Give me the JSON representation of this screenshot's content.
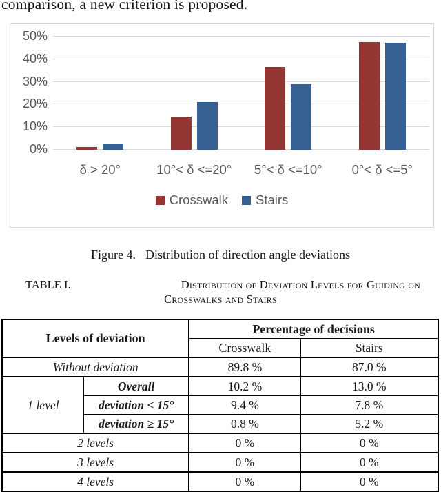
{
  "page": {
    "top_text": "comparison, a new criterion is proposed."
  },
  "figure": {
    "caption_label": "Figure 4.",
    "caption_text": "Distribution of direction angle deviations"
  },
  "chart_data": {
    "type": "bar",
    "title": "",
    "categories": [
      "δ > 20°",
      "10°< δ <=20°",
      "5°< δ <=10°",
      "0°< δ <=5°"
    ],
    "series": [
      {
        "name": "Crosswalk",
        "color": "#943634",
        "values": [
          1.2,
          14.6,
          36.5,
          47.6
        ]
      },
      {
        "name": "Stairs",
        "color": "#376092",
        "values": [
          2.8,
          21.0,
          28.9,
          47.4
        ]
      }
    ],
    "ylim": [
      0,
      50
    ],
    "yticks": [
      "0%",
      "10%",
      "20%",
      "30%",
      "40%",
      "50%"
    ],
    "grid": true,
    "legend_position": "bottom",
    "axis_text_color": "#595959",
    "gridline_color": "#d9d9d9"
  },
  "table_caption": {
    "label": "TABLE I.",
    "line1": "Distribution of Deviation Levels for Guiding on",
    "line2": "Crosswalks and Stairs"
  },
  "table": {
    "levels_header": "Levels of deviation",
    "group_header": "Percentage of decisions",
    "col_crosswalk": "Crosswalk",
    "col_stairs": "Stairs",
    "rows": {
      "without": {
        "label": "Without deviation",
        "crosswalk": "89.8 %",
        "stairs": "87.0 %"
      },
      "one_level_label": "1 level",
      "overall": {
        "label": "Overall",
        "crosswalk": "10.2 %",
        "stairs": "13.0 %"
      },
      "lt15": {
        "label": "deviation < 15°",
        "crosswalk": "9.4 %",
        "stairs": "7.8 %"
      },
      "ge15": {
        "label": "deviation ≥ 15°",
        "crosswalk": "0.8 %",
        "stairs": "5.2 %"
      },
      "two": {
        "label": "2 levels",
        "crosswalk": "0 %",
        "stairs": "0 %"
      },
      "three": {
        "label": "3 levels",
        "crosswalk": "0 %",
        "stairs": "0 %"
      },
      "four": {
        "label": "4 levels",
        "crosswalk": "0 %",
        "stairs": "0 %"
      }
    }
  }
}
